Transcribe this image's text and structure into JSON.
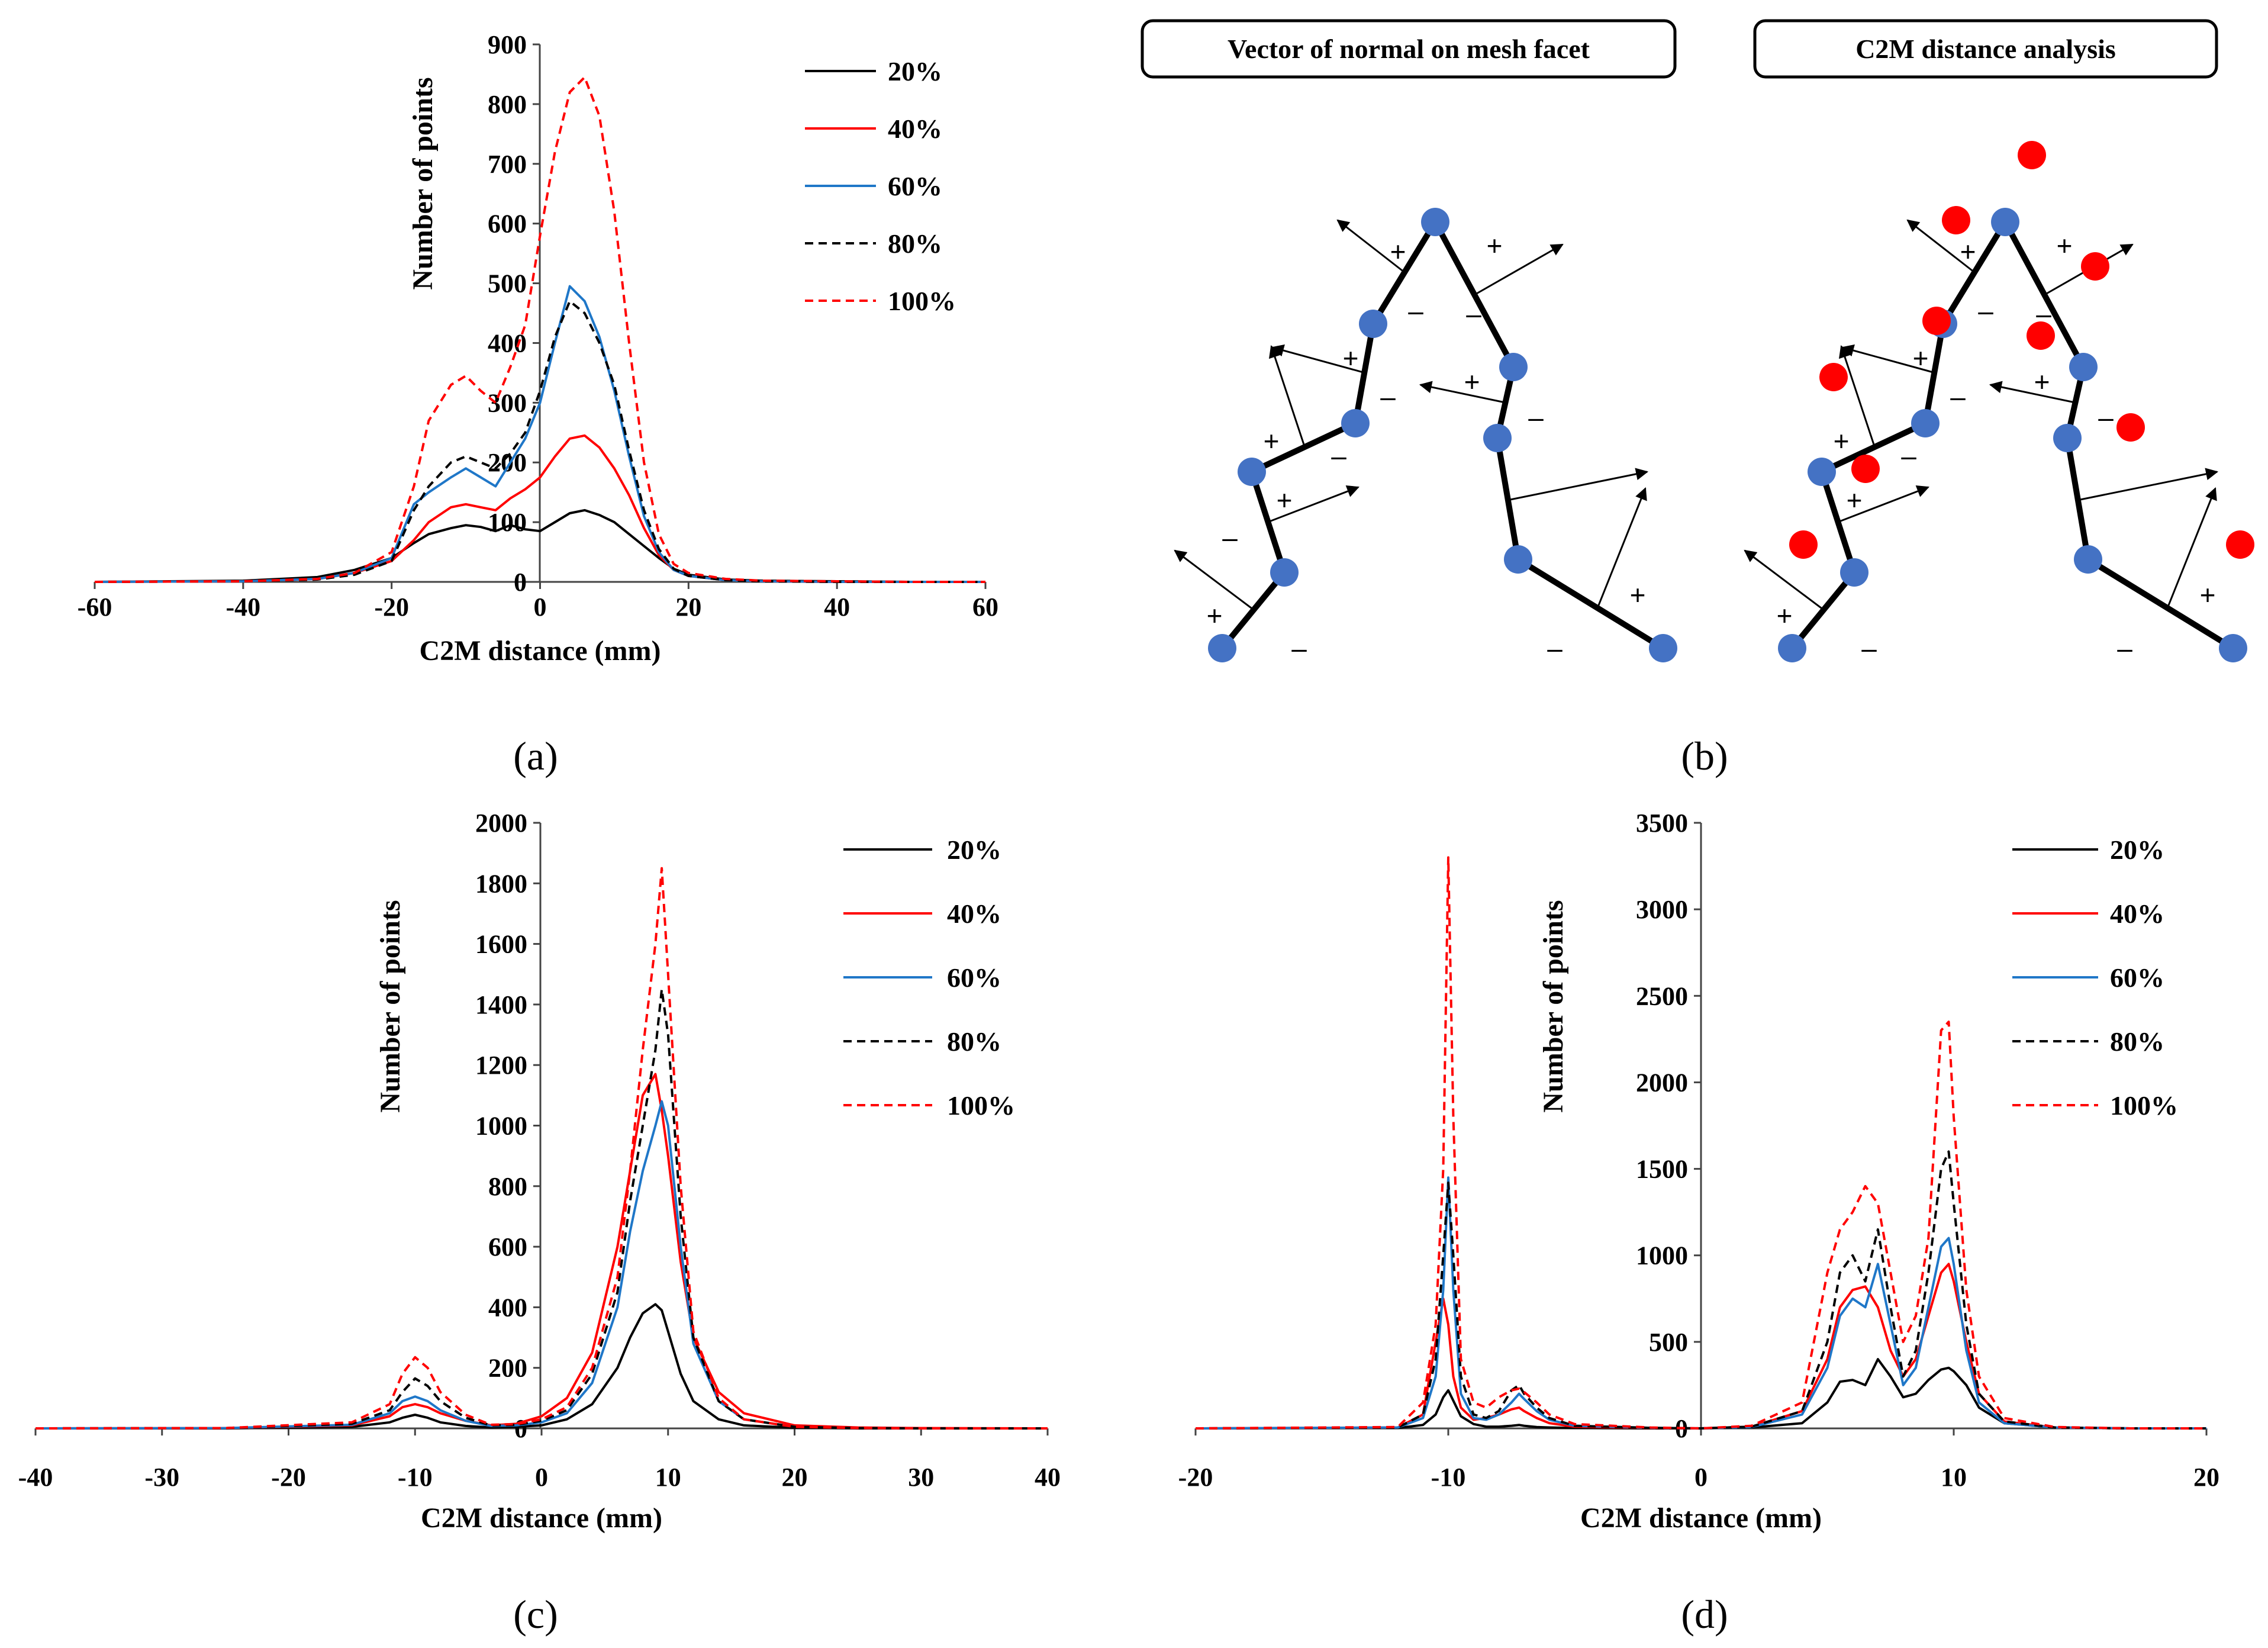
{
  "chart_data": [
    {
      "id": "a",
      "type": "line",
      "panel_label": "(a)",
      "xlabel": "C2M distance  (mm)",
      "ylabel": "Number of points",
      "xlim": [
        -60,
        60
      ],
      "ylim": [
        0,
        900
      ],
      "xticks": [
        "-60",
        "-40",
        "-20",
        "0",
        "20",
        "40",
        "60"
      ],
      "yticks": [
        "0",
        "100",
        "200",
        "300",
        "400",
        "500",
        "600",
        "700",
        "800",
        "900"
      ],
      "x": [
        -60,
        -40,
        -30,
        -25,
        -20,
        -17,
        -15,
        -12,
        -10,
        -8,
        -6,
        -4,
        -2,
        0,
        2,
        4,
        6,
        8,
        10,
        12,
        14,
        16,
        18,
        20,
        25,
        30,
        40,
        50,
        60
      ],
      "series": [
        {
          "name": "20%",
          "color": "#000000",
          "dash": "solid",
          "values": [
            0,
            2,
            8,
            20,
            40,
            65,
            80,
            90,
            95,
            92,
            85,
            95,
            88,
            85,
            100,
            115,
            120,
            112,
            100,
            80,
            60,
            40,
            22,
            12,
            4,
            2,
            1,
            0,
            0
          ]
        },
        {
          "name": "40%",
          "color": "#ff0000",
          "dash": "solid",
          "values": [
            0,
            1,
            5,
            15,
            35,
            70,
            100,
            125,
            130,
            125,
            120,
            140,
            155,
            175,
            210,
            240,
            245,
            225,
            190,
            145,
            90,
            45,
            20,
            10,
            3,
            1,
            0,
            0,
            0
          ]
        },
        {
          "name": "60%",
          "color": "#1f77c8",
          "dash": "solid",
          "values": [
            0,
            1,
            5,
            15,
            40,
            130,
            150,
            175,
            190,
            175,
            160,
            200,
            240,
            300,
            400,
            495,
            470,
            410,
            320,
            210,
            110,
            50,
            20,
            10,
            3,
            1,
            0,
            0,
            0
          ]
        },
        {
          "name": "80%",
          "color": "#000000",
          "dash": "dashed",
          "values": [
            0,
            1,
            4,
            12,
            35,
            120,
            160,
            200,
            210,
            200,
            190,
            215,
            250,
            320,
            410,
            470,
            450,
            400,
            330,
            220,
            120,
            55,
            22,
            10,
            3,
            1,
            0,
            0,
            0
          ]
        },
        {
          "name": "100%",
          "color": "#ff0000",
          "dash": "dashed",
          "values": [
            0,
            1,
            5,
            15,
            50,
            160,
            270,
            330,
            345,
            320,
            300,
            360,
            430,
            580,
            720,
            820,
            845,
            780,
            620,
            400,
            200,
            80,
            30,
            15,
            5,
            2,
            1,
            0,
            0
          ]
        }
      ]
    },
    {
      "id": "c",
      "type": "line",
      "panel_label": "(c)",
      "xlabel": "C2M distance  (mm)",
      "ylabel": "Number of points",
      "xlim": [
        -40,
        40
      ],
      "ylim": [
        0,
        2000
      ],
      "xticks": [
        "-40",
        "-30",
        "-20",
        "-10",
        "0",
        "10",
        "20",
        "30",
        "40"
      ],
      "yticks": [
        "0",
        "200",
        "400",
        "600",
        "800",
        "1000",
        "1200",
        "1400",
        "1600",
        "1800",
        "2000"
      ],
      "x": [
        -40,
        -25,
        -15,
        -12,
        -11,
        -10,
        -9,
        -8,
        -6,
        -4,
        -2,
        0,
        2,
        4,
        6,
        7,
        8,
        9,
        9.5,
        10,
        11,
        12,
        14,
        16,
        20,
        25,
        30,
        40
      ],
      "series": [
        {
          "name": "20%",
          "color": "#000000",
          "dash": "solid",
          "values": [
            0,
            0,
            5,
            20,
            35,
            45,
            35,
            20,
            8,
            3,
            5,
            10,
            30,
            80,
            200,
            300,
            380,
            410,
            390,
            320,
            180,
            90,
            30,
            10,
            2,
            0,
            0,
            0
          ]
        },
        {
          "name": "40%",
          "color": "#ff0000",
          "dash": "solid",
          "values": [
            0,
            1,
            10,
            40,
            70,
            80,
            70,
            50,
            25,
            10,
            15,
            40,
            100,
            250,
            600,
            850,
            1100,
            1170,
            1050,
            900,
            550,
            300,
            120,
            50,
            10,
            3,
            1,
            0
          ]
        },
        {
          "name": "60%",
          "color": "#1f77c8",
          "dash": "solid",
          "values": [
            0,
            1,
            12,
            50,
            90,
            105,
            90,
            60,
            25,
            8,
            10,
            20,
            50,
            150,
            400,
            650,
            850,
            1000,
            1080,
            1000,
            600,
            280,
            90,
            30,
            5,
            1,
            0,
            0
          ]
        },
        {
          "name": "80%",
          "color": "#000000",
          "dash": "dashed",
          "values": [
            0,
            1,
            15,
            60,
            120,
            165,
            140,
            90,
            35,
            10,
            12,
            25,
            60,
            180,
            450,
            750,
            1000,
            1250,
            1450,
            1300,
            700,
            300,
            90,
            30,
            5,
            1,
            0,
            0
          ]
        },
        {
          "name": "100%",
          "color": "#ff0000",
          "dash": "dashed",
          "values": [
            0,
            1,
            20,
            80,
            180,
            235,
            200,
            120,
            45,
            12,
            14,
            30,
            70,
            200,
            500,
            850,
            1250,
            1600,
            1850,
            1500,
            800,
            320,
            100,
            30,
            5,
            1,
            0,
            0
          ]
        }
      ]
    },
    {
      "id": "d",
      "type": "line",
      "panel_label": "(d)",
      "xlabel": "C2M distance  (mm)",
      "ylabel": "Number of points",
      "xlim": [
        -20,
        20
      ],
      "ylim": [
        0,
        3500
      ],
      "xticks": [
        "-20",
        "-10",
        "0",
        "10",
        "20"
      ],
      "yticks": [
        "0",
        "500",
        "1000",
        "1500",
        "2000",
        "2500",
        "3000",
        "3500"
      ],
      "x": [
        -20,
        -12,
        -11,
        -10.5,
        -10.2,
        -10,
        -9.8,
        -9.5,
        -9,
        -8.5,
        -8,
        -7.5,
        -7.2,
        -7,
        -6.5,
        -6,
        -5,
        -2,
        0,
        2,
        4,
        5,
        5.5,
        6,
        6.5,
        7,
        7.5,
        8,
        8.5,
        9,
        9.5,
        9.8,
        10,
        10.5,
        11,
        12,
        14,
        17,
        20
      ],
      "series": [
        {
          "name": "20%",
          "color": "#000000",
          "dash": "solid",
          "values": [
            0,
            2,
            20,
            80,
            180,
            220,
            160,
            70,
            25,
            10,
            10,
            15,
            20,
            15,
            8,
            5,
            2,
            0,
            0,
            5,
            30,
            150,
            270,
            280,
            250,
            400,
            300,
            180,
            200,
            280,
            340,
            350,
            330,
            250,
            120,
            30,
            5,
            0,
            0
          ]
        },
        {
          "name": "40%",
          "color": "#ff0000",
          "dash": "solid",
          "values": [
            0,
            5,
            80,
            500,
            750,
            600,
            300,
            120,
            50,
            60,
            80,
            110,
            120,
            100,
            60,
            30,
            10,
            2,
            0,
            10,
            100,
            400,
            700,
            800,
            820,
            700,
            450,
            300,
            400,
            650,
            900,
            950,
            850,
            500,
            200,
            40,
            5,
            0,
            0
          ]
        },
        {
          "name": "60%",
          "color": "#1f77c8",
          "dash": "solid",
          "values": [
            0,
            5,
            60,
            300,
            800,
            1450,
            800,
            200,
            60,
            50,
            80,
            150,
            200,
            170,
            100,
            50,
            15,
            3,
            0,
            8,
            80,
            350,
            650,
            750,
            700,
            950,
            600,
            250,
            350,
            700,
            1050,
            1100,
            950,
            450,
            150,
            30,
            5,
            0,
            0
          ]
        },
        {
          "name": "80%",
          "color": "#000000",
          "dash": "dashed",
          "values": [
            0,
            5,
            80,
            400,
            1000,
            1420,
            1000,
            300,
            80,
            60,
            100,
            220,
            250,
            200,
            120,
            60,
            15,
            3,
            0,
            10,
            100,
            500,
            900,
            1000,
            850,
            1150,
            700,
            300,
            450,
            900,
            1500,
            1600,
            1300,
            600,
            200,
            40,
            5,
            0,
            0
          ]
        },
        {
          "name": "100%",
          "color": "#ff0000",
          "dash": "dashed",
          "values": [
            0,
            8,
            150,
            600,
            1500,
            3300,
            1800,
            400,
            150,
            120,
            180,
            220,
            230,
            210,
            150,
            80,
            25,
            5,
            0,
            15,
            150,
            900,
            1150,
            1250,
            1400,
            1300,
            900,
            500,
            650,
            1100,
            2300,
            2350,
            1800,
            800,
            300,
            60,
            8,
            0,
            0
          ]
        }
      ]
    }
  ],
  "diagram_b": {
    "panel_label": "(b)",
    "left_title": "Vector of normal on mesh facet",
    "right_title": "C2M distance analysis",
    "plus": "+",
    "minus": "–"
  }
}
